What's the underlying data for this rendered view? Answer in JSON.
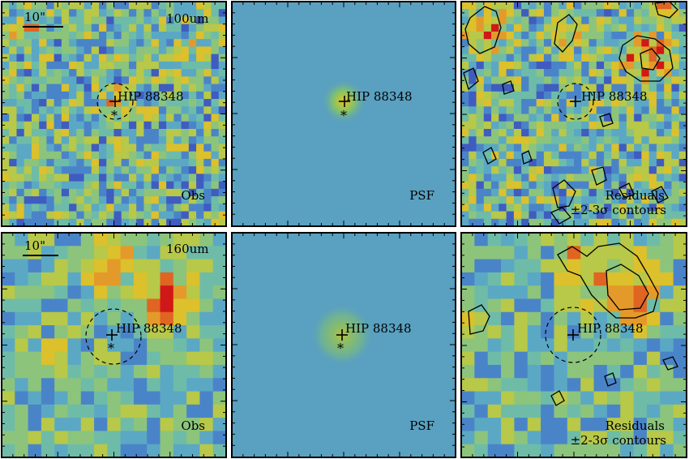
{
  "panels": [
    {
      "id": "obs-100",
      "type": "obs",
      "band": "100um",
      "corner_label": "Obs",
      "scale_label": "10\"",
      "target_label": "HIP 88348"
    },
    {
      "id": "psf-100",
      "type": "psf",
      "corner_label": "PSF",
      "target_label": "HIP 88348"
    },
    {
      "id": "res-100",
      "type": "residual",
      "corner_label": "Residuals",
      "contour_label": "±2-3σ contours",
      "target_label": "HIP 88348"
    },
    {
      "id": "obs-160",
      "type": "obs",
      "band": "160um",
      "corner_label": "Obs",
      "scale_label": "10\"",
      "target_label": "HIP 88348"
    },
    {
      "id": "psf-160",
      "type": "psf",
      "corner_label": "PSF",
      "target_label": "HIP 88348"
    },
    {
      "id": "res-160",
      "type": "residual",
      "corner_label": "Residuals",
      "contour_label": "±2-3σ contours",
      "target_label": "HIP 88348"
    }
  ],
  "colors": {
    "background": "#5aa0c0",
    "psf_core": "#d8c028",
    "psf_mid": "#7ec070",
    "map_low": "#4a1f8c",
    "map_mid": "#5ba8c4",
    "map_high": "#d01818"
  }
}
